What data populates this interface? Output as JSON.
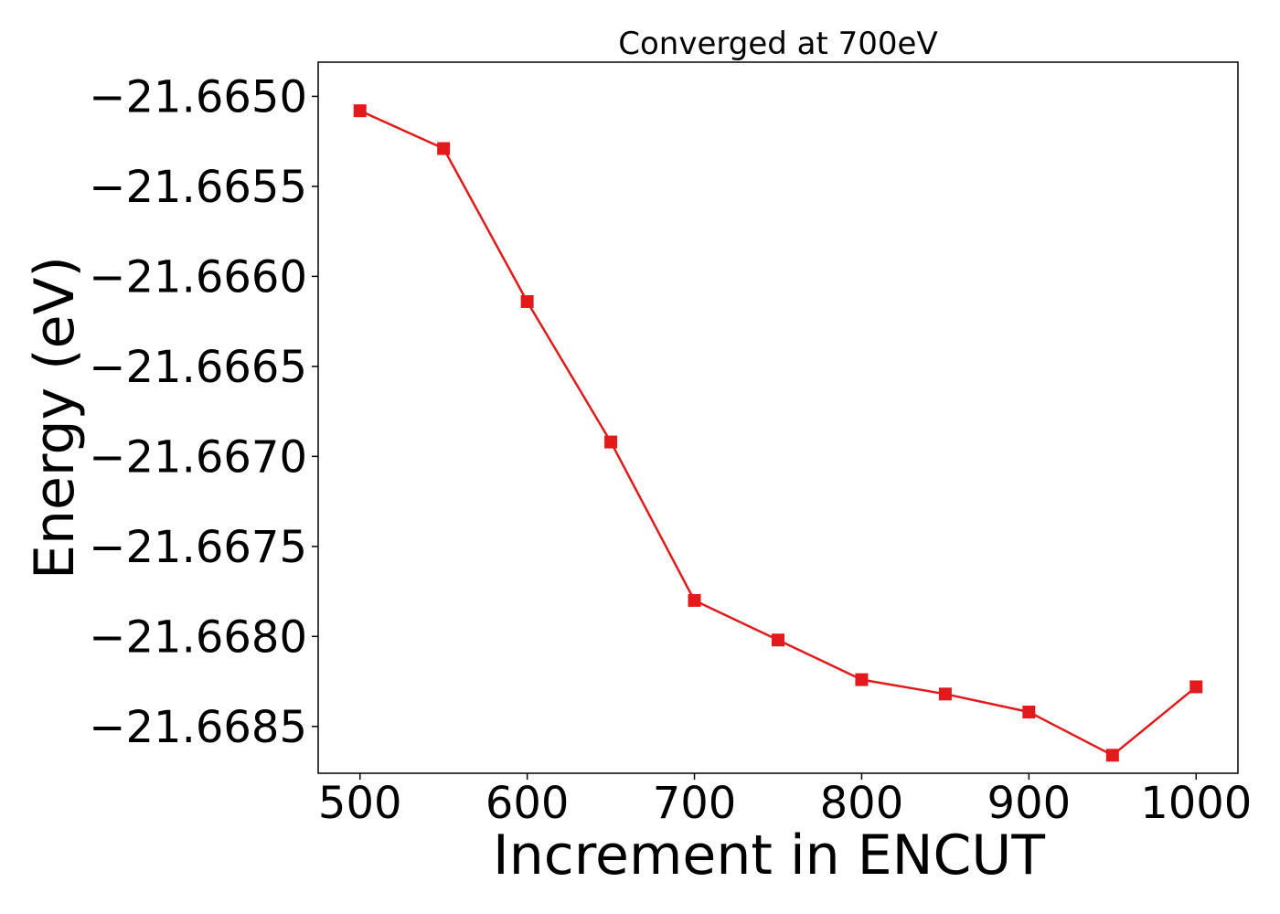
{
  "chart_data": {
    "type": "line",
    "title": "Converged at 700eV",
    "xlabel": "Increment in ENCUT",
    "ylabel": "Energy (eV)",
    "x": [
      500,
      550,
      600,
      650,
      700,
      750,
      800,
      850,
      900,
      950,
      1000
    ],
    "series": [
      {
        "values": [
          -21.66508,
          -21.66529,
          -21.66614,
          -21.66692,
          -21.6678,
          -21.66802,
          -21.66824,
          -21.66832,
          -21.66842,
          -21.66866,
          -21.66828
        ],
        "color": "#e31a1c",
        "marker": "square"
      }
    ],
    "xlim": [
      475,
      1025
    ],
    "ylim": [
      -21.66876,
      -21.66481
    ],
    "xticks": [
      500,
      600,
      700,
      800,
      900,
      1000
    ],
    "xtick_labels": [
      "500",
      "600",
      "700",
      "800",
      "900",
      "1000"
    ],
    "yticks": [
      -21.665,
      -21.6655,
      -21.666,
      -21.6665,
      -21.667,
      -21.6675,
      -21.668,
      -21.6685
    ],
    "ytick_labels": [
      "−21.6650",
      "−21.6655",
      "−21.6660",
      "−21.6665",
      "−21.6670",
      "−21.6675",
      "−21.6680",
      "−21.6685"
    ],
    "grid": false,
    "legend": "none"
  }
}
